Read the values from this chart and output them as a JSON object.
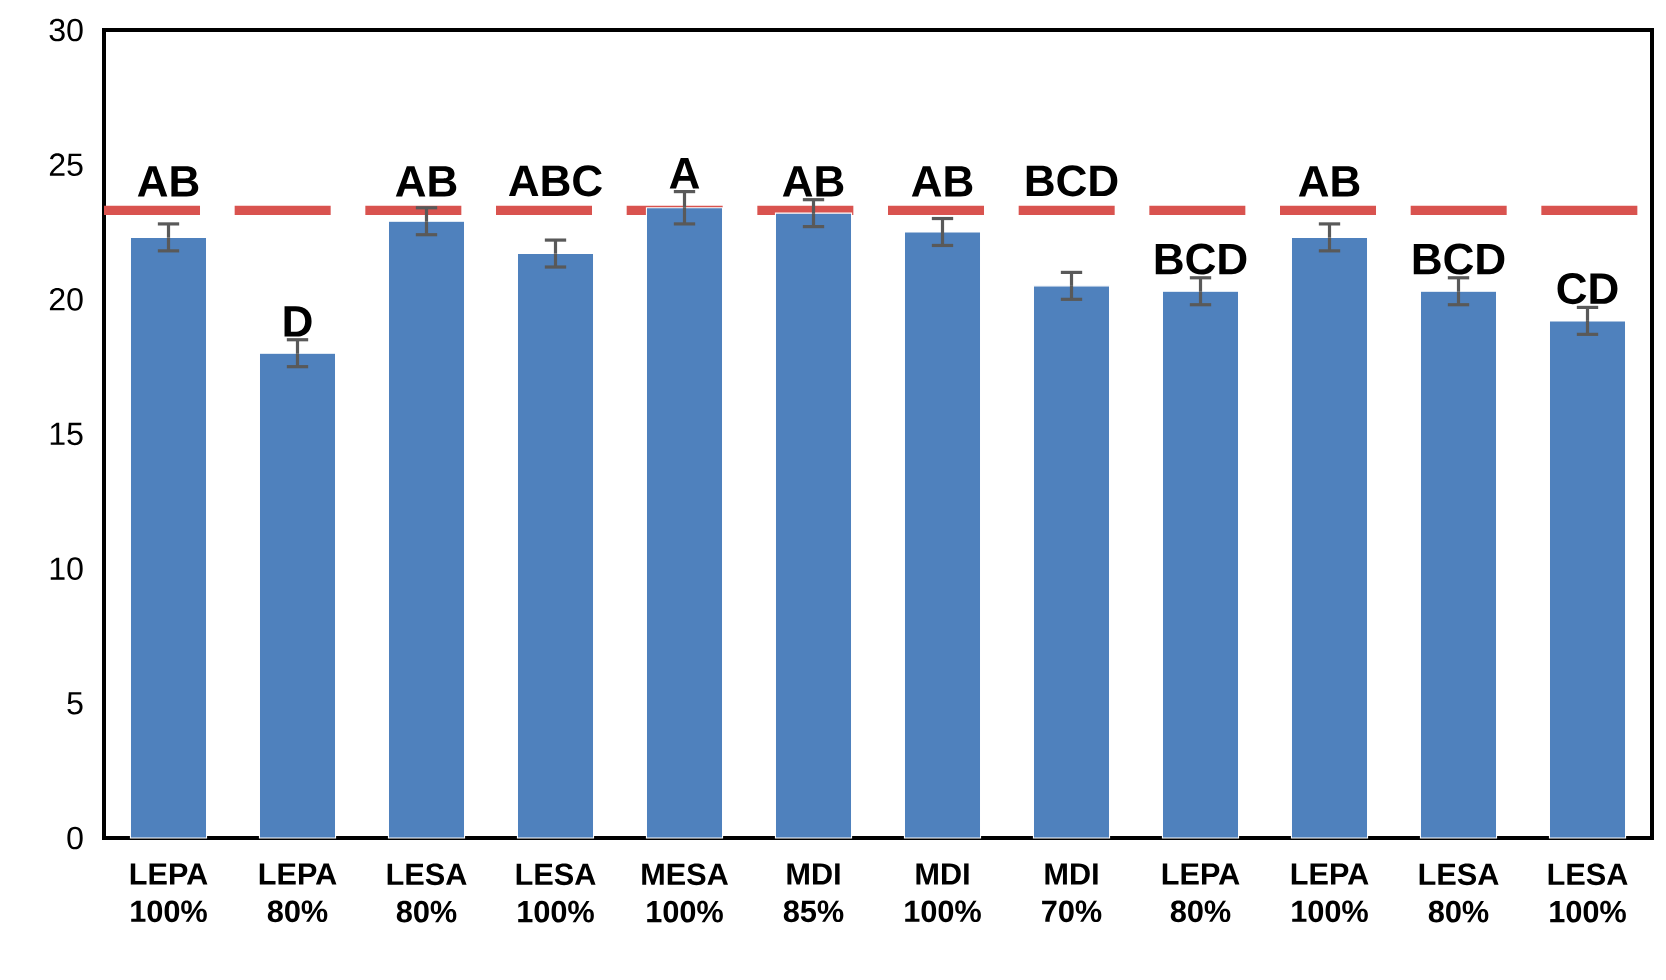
{
  "chart_data": {
    "type": "bar",
    "categories": [
      "LEPA 100%",
      "LEPA 80%",
      "LESA 80%",
      "LESA 100%",
      "MESA 100%",
      "MDI 85%",
      "MDI 100%",
      "MDI 70%",
      "LEPA 80%",
      "LEPA 100%",
      "LESA 80%",
      "LESA 100%"
    ],
    "values": [
      22.3,
      18.0,
      22.9,
      21.7,
      23.4,
      23.2,
      22.5,
      20.5,
      20.3,
      22.3,
      20.3,
      19.2
    ],
    "errors": [
      0.5,
      0.5,
      0.5,
      0.5,
      0.6,
      0.5,
      0.5,
      0.5,
      0.5,
      0.5,
      0.5,
      0.5
    ],
    "value_labels": [
      "AB",
      "D",
      "AB",
      "ABC",
      "A",
      "AB",
      "AB",
      "BCD",
      "BCD",
      "AB",
      "BCD",
      "CD"
    ],
    "color": "#4f81bd",
    "ylim": [
      0,
      30
    ],
    "yticks": [
      0,
      5,
      10,
      15,
      20,
      25,
      30
    ],
    "ref_lines": [
      {
        "axis": "y",
        "value": 23.3,
        "color": "#d9534f",
        "line_style": "dashed"
      }
    ]
  }
}
